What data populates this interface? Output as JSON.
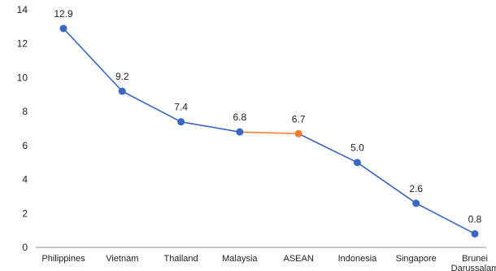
{
  "chart_data": {
    "type": "line",
    "title": "",
    "xlabel": "",
    "ylabel": "",
    "ylim": [
      0,
      14
    ],
    "yticks": [
      0,
      2,
      4,
      6,
      8,
      10,
      12,
      14
    ],
    "grid": false,
    "categories": [
      "Philippines",
      "Vietnam",
      "Thailand",
      "Malaysia",
      "ASEAN",
      "Indonesia",
      "Singapore",
      "Brunei Darussalam"
    ],
    "category_lines": [
      [
        "Philippines"
      ],
      [
        "Vietnam"
      ],
      [
        "Thailand"
      ],
      [
        "Malaysia"
      ],
      [
        "ASEAN"
      ],
      [
        "Indonesia"
      ],
      [
        "Singapore"
      ],
      [
        "Brunei",
        "Darussalam"
      ]
    ],
    "values": [
      12.9,
      9.2,
      7.4,
      6.8,
      6.7,
      5.0,
      2.6,
      0.8
    ],
    "data_labels": [
      "12.9",
      "9.2",
      "7.4",
      "6.8",
      "6.7",
      "5.0",
      "2.6",
      "0.8"
    ],
    "highlight_index": 4,
    "colors": {
      "series": "#3a66c4",
      "highlight": "#ed7d31",
      "axis": "#888888"
    }
  }
}
